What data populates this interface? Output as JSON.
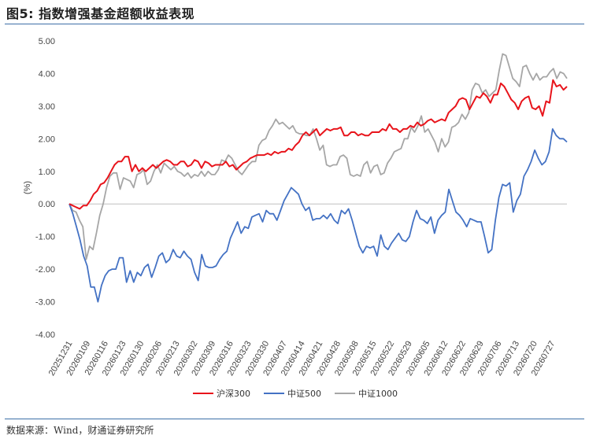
{
  "title": "图5: 指数增强基金超额收益表现",
  "source": "数据来源：Wind，财通证券研究所",
  "chart_data": {
    "type": "line",
    "ylabel": "(%)",
    "ylim": [
      -4.0,
      5.0
    ],
    "yticks": [
      "-4.00",
      "-3.00",
      "-2.00",
      "-1.00",
      "0.00",
      "1.00",
      "2.00",
      "3.00",
      "4.00",
      "5.00"
    ],
    "xtick_labels": [
      "20251231",
      "20260109",
      "20260116",
      "20260123",
      "20260130",
      "20260206",
      "20260213",
      "20260302",
      "20260309",
      "20260316",
      "20260323",
      "20260330",
      "20260407",
      "20260414",
      "20260421",
      "20260428",
      "20260508",
      "20260515",
      "20260522",
      "20260529",
      "20260605",
      "20260612",
      "20260622",
      "20260629",
      "20260706",
      "20260713",
      "20260720",
      "20260727"
    ],
    "grid": false,
    "legend_position": "bottom",
    "series": [
      {
        "name": "沪深300",
        "color": "#e8141b",
        "values": [
          0.0,
          -0.05,
          -0.1,
          -0.15,
          -0.05,
          -0.05,
          0.1,
          0.3,
          0.4,
          0.6,
          0.65,
          0.8,
          1.0,
          1.2,
          1.3,
          1.3,
          1.45,
          1.45,
          1.0,
          1.2,
          1.0,
          1.1,
          1.0,
          1.1,
          1.2,
          1.1,
          1.2,
          1.3,
          1.35,
          1.3,
          1.2,
          1.2,
          1.3,
          1.3,
          1.15,
          1.2,
          1.35,
          1.3,
          1.1,
          1.3,
          1.25,
          1.15,
          1.2,
          1.2,
          1.2,
          1.3,
          1.15,
          1.2,
          1.05,
          1.15,
          1.25,
          1.3,
          1.4,
          1.45,
          1.5,
          1.5,
          1.5,
          1.55,
          1.5,
          1.6,
          1.55,
          1.6,
          1.6,
          1.7,
          1.65,
          1.8,
          1.9,
          2.1,
          2.2,
          2.1,
          2.2,
          2.3,
          2.1,
          2.2,
          2.3,
          2.25,
          2.3,
          2.3,
          2.35,
          2.1,
          2.1,
          2.2,
          2.2,
          2.1,
          2.15,
          2.1,
          2.1,
          2.2,
          2.2,
          2.2,
          2.3,
          2.25,
          2.45,
          2.3,
          2.3,
          2.2,
          2.3,
          2.3,
          2.4,
          2.35,
          2.5,
          2.4,
          2.45,
          2.55,
          2.6,
          2.5,
          2.55,
          2.6,
          2.55,
          2.8,
          2.9,
          3.0,
          3.2,
          3.25,
          3.2,
          2.9,
          3.1,
          3.3,
          3.25,
          3.4,
          3.3,
          3.1,
          3.35,
          3.35,
          3.7,
          3.6,
          3.4,
          3.2,
          3.1,
          2.9,
          3.15,
          3.25,
          3.3,
          2.95,
          2.9,
          3.0,
          2.7,
          3.15,
          3.1,
          3.8,
          3.6,
          3.65,
          3.5,
          3.6
        ]
      },
      {
        "name": "中证500",
        "color": "#4472c4",
        "values": [
          0.0,
          -0.3,
          -0.7,
          -1.1,
          -1.6,
          -1.9,
          -2.55,
          -2.55,
          -3.0,
          -2.5,
          -2.2,
          -2.05,
          -2.0,
          -2.0,
          -1.65,
          -1.65,
          -2.4,
          -2.05,
          -2.4,
          -2.1,
          -2.2,
          -1.95,
          -1.85,
          -2.25,
          -1.95,
          -1.6,
          -1.5,
          -1.8,
          -1.7,
          -1.4,
          -1.6,
          -1.65,
          -1.45,
          -1.6,
          -1.7,
          -2.1,
          -2.35,
          -1.55,
          -1.9,
          -1.95,
          -1.95,
          -1.9,
          -1.7,
          -1.55,
          -1.45,
          -1.05,
          -0.8,
          -0.55,
          -0.9,
          -0.7,
          -0.75,
          -0.4,
          -0.35,
          -0.3,
          -0.55,
          -0.2,
          -0.3,
          -0.3,
          -0.5,
          -0.2,
          0.1,
          0.3,
          0.5,
          0.4,
          0.3,
          0.0,
          -0.2,
          -0.1,
          -0.5,
          -0.45,
          -0.45,
          -0.35,
          -0.45,
          -0.3,
          -0.5,
          -0.6,
          -0.2,
          -0.3,
          -0.15,
          -0.5,
          -0.9,
          -1.3,
          -1.5,
          -1.3,
          -1.35,
          -1.3,
          -1.6,
          -0.95,
          -1.3,
          -1.4,
          -1.2,
          -1.05,
          -0.9,
          -1.1,
          -1.15,
          -1.0,
          -0.55,
          -0.2,
          -0.45,
          -0.5,
          -0.6,
          -0.4,
          -0.9,
          -0.5,
          -0.35,
          -0.25,
          0.45,
          0.1,
          -0.25,
          -0.35,
          -0.5,
          -0.7,
          -0.45,
          -0.5,
          -0.55,
          -0.55,
          -1.0,
          -1.5,
          -1.4,
          -0.5,
          0.2,
          0.6,
          0.55,
          0.65,
          -0.25,
          0.1,
          0.3,
          0.85,
          1.05,
          1.3,
          1.65,
          1.4,
          1.2,
          1.3,
          1.6,
          2.3,
          2.1,
          2.0,
          2.0,
          1.9
        ]
      },
      {
        "name": "中证1000",
        "color": "#a6a6a6",
        "values": [
          0.0,
          -0.2,
          -0.25,
          -0.5,
          -0.7,
          -1.7,
          -1.3,
          -1.4,
          -0.9,
          -0.35,
          0.0,
          0.5,
          0.85,
          0.95,
          0.95,
          0.45,
          0.8,
          0.75,
          0.7,
          0.5,
          0.9,
          0.95,
          1.05,
          0.6,
          0.7,
          1.0,
          1.2,
          0.95,
          1.25,
          1.15,
          1.05,
          1.15,
          1.0,
          0.95,
          0.85,
          0.95,
          0.8,
          0.9,
          0.85,
          1.0,
          0.85,
          1.0,
          0.9,
          0.9,
          1.05,
          1.35,
          1.3,
          1.5,
          1.4,
          1.2,
          1.0,
          0.9,
          1.05,
          1.2,
          1.3,
          1.3,
          1.8,
          1.95,
          2.0,
          2.25,
          2.4,
          2.6,
          2.45,
          2.5,
          2.4,
          2.3,
          2.4,
          2.2,
          2.15,
          2.15,
          2.1,
          2.1,
          2.3,
          2.0,
          1.65,
          1.8,
          1.2,
          1.15,
          1.2,
          1.2,
          1.45,
          1.5,
          1.4,
          0.9,
          0.85,
          0.9,
          0.85,
          1.2,
          1.3,
          0.95,
          1.15,
          1.2,
          0.9,
          0.95,
          1.25,
          1.4,
          1.6,
          1.65,
          1.7,
          2.0,
          2.0,
          2.35,
          2.2,
          2.4,
          2.7,
          2.2,
          2.3,
          2.1,
          1.9,
          1.6,
          2.0,
          1.75,
          1.9,
          2.35,
          2.4,
          2.5,
          2.75,
          2.6,
          2.8,
          3.5,
          3.7,
          3.65,
          3.4,
          3.5,
          3.3,
          3.4,
          3.5,
          4.1,
          4.6,
          4.55,
          4.2,
          3.85,
          3.75,
          3.6,
          4.2,
          4.25,
          4.0,
          3.8,
          4.0,
          3.8,
          3.9,
          3.9,
          4.05,
          4.15,
          3.85,
          4.05,
          4.0,
          3.85
        ]
      }
    ]
  }
}
